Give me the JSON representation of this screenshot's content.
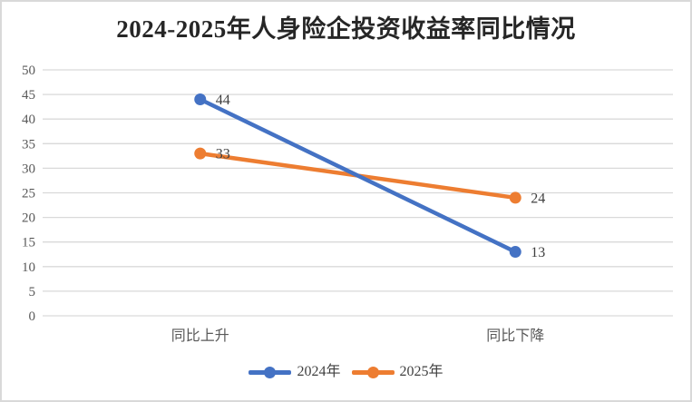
{
  "chart_data": {
    "type": "line",
    "title": "2024-2025年人身险企投资收益率同比情况",
    "categories": [
      "同比上升",
      "同比下降"
    ],
    "series": [
      {
        "name": "2024年",
        "values": [
          44,
          13
        ],
        "color": "#4472C4"
      },
      {
        "name": "2025年",
        "values": [
          33,
          24
        ],
        "color": "#ED7D31"
      }
    ],
    "ylim": [
      0,
      50
    ],
    "yticks": [
      0,
      5,
      10,
      15,
      20,
      25,
      30,
      35,
      40,
      45,
      50
    ],
    "grid": true,
    "data_labels": true,
    "legend_position": "bottom",
    "xlabel": "",
    "ylabel": ""
  },
  "colors": {
    "gridline": "#D9D9D9",
    "axis_text": "#595959",
    "data_label_text": "#404040",
    "title_text": "#262626",
    "border": "#D9D9D9",
    "background": "#FFFFFF"
  }
}
